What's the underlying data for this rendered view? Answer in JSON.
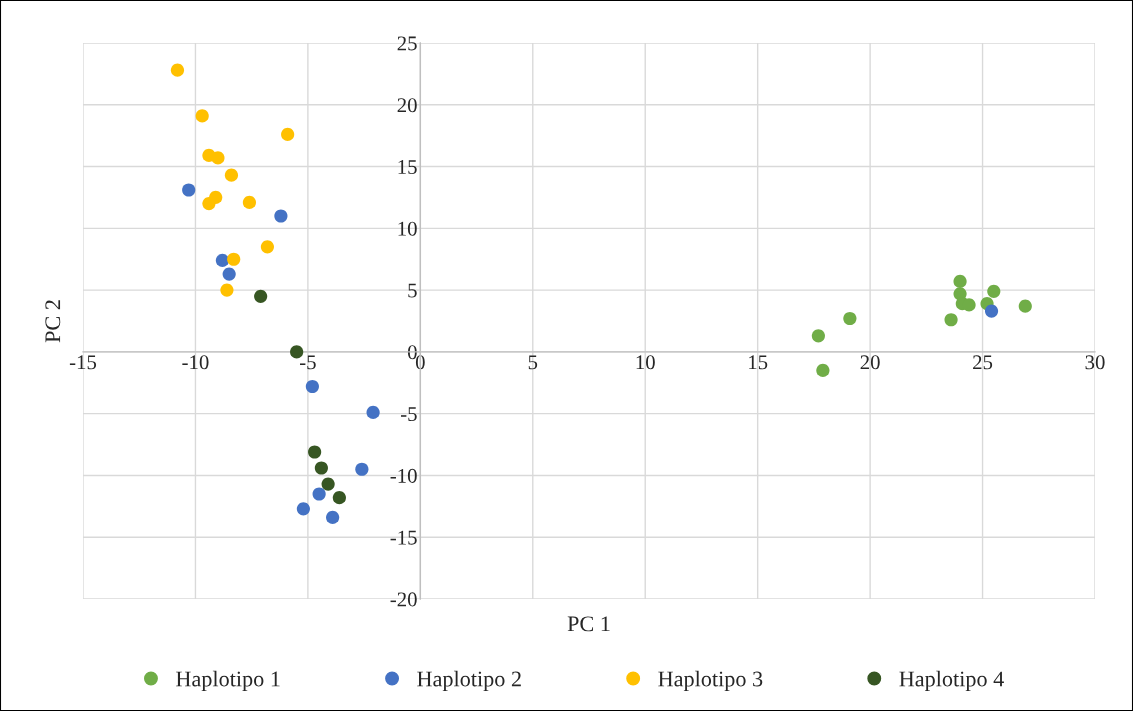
{
  "chart_data": {
    "type": "scatter",
    "xlabel": "PC 1",
    "ylabel": "PC 2",
    "xlim": [
      -15,
      30
    ],
    "xticks": [
      -15,
      -10,
      -5,
      0,
      5,
      10,
      15,
      20,
      25,
      30
    ],
    "ylim": [
      -20,
      25
    ],
    "yticks": [
      -20,
      -15,
      -10,
      -5,
      0,
      5,
      10,
      15,
      20,
      25
    ],
    "grid": true,
    "legend": "bottom",
    "marker": "circle",
    "series": [
      {
        "name": "Haplotipo 1",
        "color": "#70ad47",
        "x": [
          17.7,
          17.9,
          19.1,
          23.6,
          24.0,
          24.0,
          24.1,
          24.4,
          25.2,
          25.5,
          26.9
        ],
        "values": [
          1.3,
          -1.5,
          2.7,
          2.6,
          5.7,
          4.7,
          3.9,
          3.8,
          3.9,
          4.9,
          3.7
        ]
      },
      {
        "name": "Haplotipo 2",
        "color": "#4472c4",
        "x": [
          -10.3,
          -6.2,
          -8.8,
          -8.5,
          -4.8,
          -2.1,
          -2.6,
          -4.5,
          -5.2,
          -3.9,
          25.4
        ],
        "values": [
          13.1,
          11.0,
          7.4,
          6.3,
          -2.8,
          -4.9,
          -9.5,
          -11.5,
          -12.7,
          -13.4,
          3.3
        ]
      },
      {
        "name": "Haplotipo 3",
        "color": "#ffc000",
        "x": [
          -10.8,
          -9.7,
          -5.9,
          -9.4,
          -9.0,
          -8.4,
          -9.1,
          -9.4,
          -7.6,
          -6.8,
          -8.3,
          -8.6
        ],
        "values": [
          22.8,
          19.1,
          17.6,
          15.9,
          15.7,
          14.3,
          12.5,
          12.0,
          12.1,
          8.5,
          7.5,
          5.0
        ]
      },
      {
        "name": "Haplotipo 4",
        "color": "#375623",
        "x": [
          -7.1,
          null,
          -5.5,
          -4.7,
          -4.4,
          -4.1,
          -3.6
        ],
        "values": [
          4.5,
          null,
          0.0,
          -8.1,
          -9.4,
          -10.7,
          -11.8
        ]
      }
    ]
  }
}
